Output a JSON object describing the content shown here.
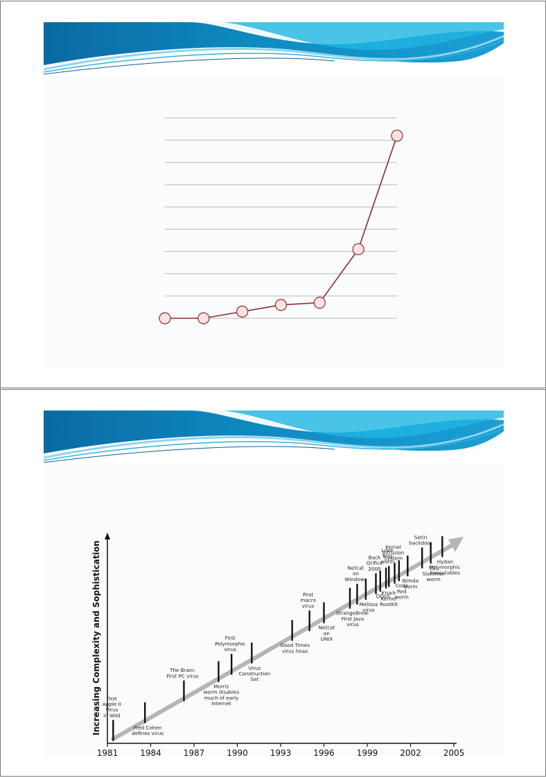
{
  "banner_colors": {
    "light": "#8fd4ee",
    "mid": "#2fb2dc",
    "dark": "#0d5f93",
    "white": "#ffffff"
  },
  "chart_data": [
    {
      "type": "line",
      "title": "",
      "xlabel": "",
      "ylabel": "",
      "x": [
        1,
        2,
        3,
        4,
        5,
        6,
        7
      ],
      "values": [
        0,
        0,
        3,
        6,
        7,
        31,
        82
      ],
      "ylim": [
        0,
        90
      ],
      "grid": true,
      "line_color": "#8b2a2a",
      "marker_fill": "#fbe3e3",
      "marker_edge": "#8b2a2a"
    },
    {
      "type": "timeline",
      "ylabel": "Increasing Complexity and Sophistication",
      "xlim": [
        1981,
        2005
      ],
      "year_ticks": [
        "1981",
        "1984",
        "1987",
        "1990",
        "1993",
        "1996",
        "1999",
        "2002",
        "2005"
      ],
      "events": [
        {
          "year": 1981.4,
          "text": [
            "First",
            "Apple II",
            "Virus",
            "in Wild"
          ],
          "side": "above"
        },
        {
          "year": 1983.6,
          "text": [
            "Fred Cohen",
            "defines virus"
          ],
          "side": "below"
        },
        {
          "year": 1986.3,
          "text": [
            "The Brain:",
            "First PC virus"
          ],
          "side": "above"
        },
        {
          "year": 1988.7,
          "text": [
            "Morris",
            "worm disables",
            "much of early",
            "Internet"
          ],
          "side": "below"
        },
        {
          "year": 1989.6,
          "text": [
            "First",
            "Polymorphic",
            "virus"
          ],
          "side": "above"
        },
        {
          "year": 1991.0,
          "text": [
            "Virus",
            "Construction",
            "Set"
          ],
          "side": "below"
        },
        {
          "year": 1993.8,
          "text": [
            "Good Times",
            "virus hoax"
          ],
          "side": "below"
        },
        {
          "year": 1995.0,
          "text": [
            "First",
            "macro",
            "virus"
          ],
          "side": "above"
        },
        {
          "year": 1996.0,
          "text": [
            "Netcat",
            "on",
            "UNIX"
          ],
          "side": "below"
        },
        {
          "year": 1997.8,
          "text": [
            "StrangeBrew:",
            "First Java",
            "virus"
          ],
          "side": "below"
        },
        {
          "year": 1998.3,
          "text": [
            "Netcat",
            "on",
            "Windows"
          ],
          "side": "above"
        },
        {
          "year": 1998.9,
          "text": [
            "Melissa",
            "virus"
          ],
          "side": "below"
        },
        {
          "year": 1999.6,
          "text": [
            "Back",
            "Orifice",
            "2000"
          ],
          "side": "above"
        },
        {
          "year": 1999.9,
          "text": [
            "DDoS"
          ],
          "side": "below"
        },
        {
          "year": 2000.3,
          "text": [
            "Knark",
            "Kernel",
            "RootKit"
          ],
          "side": "below"
        },
        {
          "year": 2000.5,
          "text": [
            "Love",
            "Bug",
            "worm"
          ],
          "side": "above"
        },
        {
          "year": 2000.9,
          "text": [
            "Kernel",
            "Intrusion",
            "System"
          ],
          "side": "above"
        },
        {
          "year": 2001.2,
          "text": [
            "Code",
            "Red",
            "worm"
          ],
          "side": "below"
        },
        {
          "year": 2001.8,
          "text": [
            "Nimda",
            "worm"
          ],
          "side": "below"
        },
        {
          "year": 2002.8,
          "text": [
            "Setiri",
            "backdoor"
          ],
          "side": "above"
        },
        {
          "year": 2003.4,
          "text": [
            "SQL",
            "Slammer",
            "worm"
          ],
          "side": "below"
        },
        {
          "year": 2004.2,
          "text": [
            "Hydan",
            "Polymorphic",
            "Executables"
          ],
          "side": "below"
        }
      ]
    }
  ]
}
